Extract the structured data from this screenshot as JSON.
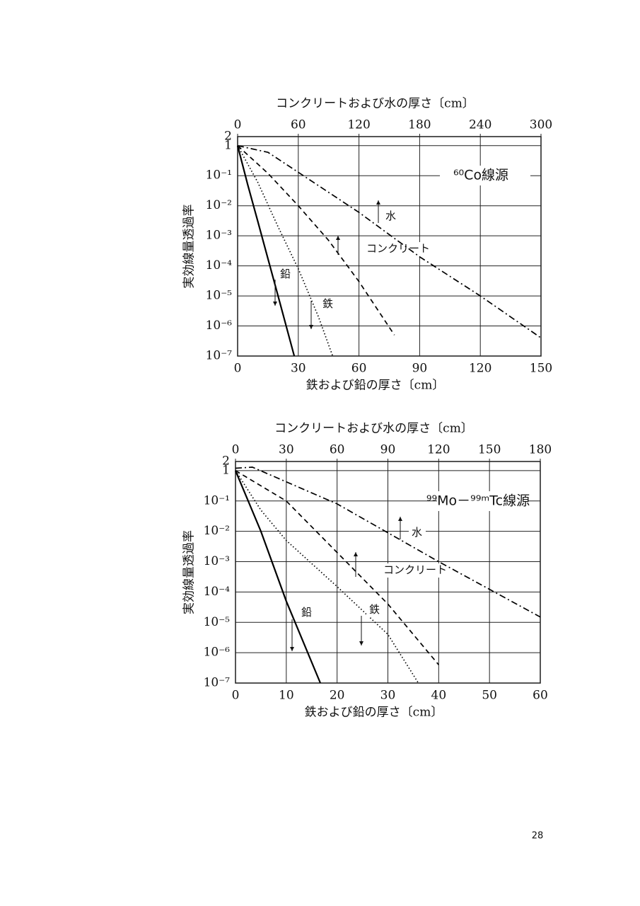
{
  "chart_data": [
    {
      "type": "line",
      "subtitle": "⁶⁰Co線源",
      "x_label": "鉄および鉛の厚さ〔cm〕",
      "x2_label": "コンクリートおよび水の厚さ〔cm〕",
      "y_label": "実効線量透過率",
      "xlim": [
        0,
        150
      ],
      "xticks": [
        0,
        30,
        60,
        90,
        120,
        150
      ],
      "x2lim": [
        0,
        300
      ],
      "x2ticks": [
        0,
        60,
        120,
        180,
        240,
        300
      ],
      "ylim": [
        1e-07,
        2
      ],
      "log_y": true,
      "grid": true,
      "yticks": [
        2,
        1,
        {
          "value": 0.1,
          "label": "10⁻¹"
        },
        {
          "value": 0.01,
          "label": "10⁻²"
        },
        {
          "value": 0.001,
          "label": "10⁻³"
        },
        {
          "value": 0.0001,
          "label": "10⁻⁴"
        },
        {
          "value": 1e-05,
          "label": "10⁻⁵"
        },
        {
          "value": 1e-06,
          "label": "10⁻⁶"
        },
        {
          "value": 1e-07,
          "label": "10⁻⁷"
        }
      ],
      "series": [
        {
          "name": "鉛",
          "style": "solid",
          "color": "#000000",
          "x": [
            0,
            5,
            10,
            20,
            28
          ],
          "values": [
            1,
            0.05,
            0.003,
            1e-05,
            1e-07
          ]
        },
        {
          "name": "鉄",
          "style": "dotted",
          "color": "#000000",
          "x": [
            0,
            10,
            20,
            30,
            40,
            47
          ],
          "values": [
            1,
            0.06,
            0.002,
            8e-05,
            2e-06,
            1e-07
          ]
        },
        {
          "name": "コンクリート",
          "style": "dashed",
          "color": "#000000",
          "axis": "x2",
          "x": [
            0,
            30,
            60,
            90,
            120,
            155
          ],
          "values": [
            1,
            0.12,
            0.01,
            0.0007,
            3e-05,
            5e-07
          ]
        },
        {
          "name": "水",
          "style": "dashdot",
          "color": "#000000",
          "axis": "x2",
          "x": [
            0,
            30,
            60,
            120,
            180,
            240,
            300
          ],
          "values": [
            1,
            0.6,
            0.13,
            0.006,
            0.0002,
            1e-05,
            4e-07
          ]
        }
      ]
    },
    {
      "type": "line",
      "subtitle": "⁹⁹Mo－⁹⁹ᵐTc線源",
      "x_label": "鉄および鉛の厚さ〔cm〕",
      "x2_label": "コンクリートおよび水の厚さ〔cm〕",
      "y_label": "実効線量透過率",
      "xlim": [
        0,
        60
      ],
      "xticks": [
        0,
        10,
        20,
        30,
        40,
        50,
        60
      ],
      "x2lim": [
        0,
        180
      ],
      "x2ticks": [
        0,
        30,
        60,
        90,
        120,
        150,
        180
      ],
      "ylim": [
        1e-07,
        2
      ],
      "log_y": true,
      "grid": true,
      "yticks": [
        2,
        1,
        {
          "value": 0.1,
          "label": "10⁻¹"
        },
        {
          "value": 0.01,
          "label": "10⁻²"
        },
        {
          "value": 0.001,
          "label": "10⁻³"
        },
        {
          "value": 0.0001,
          "label": "10⁻⁴"
        },
        {
          "value": 1e-05,
          "label": "10⁻⁵"
        },
        {
          "value": 1e-06,
          "label": "10⁻⁶"
        },
        {
          "value": 1e-07,
          "label": "10⁻⁷"
        }
      ],
      "series": [
        {
          "name": "鉛",
          "style": "solid",
          "color": "#000000",
          "x": [
            0,
            5,
            10,
            16.7
          ],
          "values": [
            1,
            0.01,
            5e-05,
            1e-07
          ]
        },
        {
          "name": "鉄",
          "style": "dotted",
          "color": "#000000",
          "x": [
            0,
            5,
            10,
            20,
            30,
            36
          ],
          "values": [
            1,
            0.05,
            0.005,
            0.00015,
            4e-06,
            1e-07
          ]
        },
        {
          "name": "コンクリート",
          "style": "dashed",
          "color": "#000000",
          "axis": "x2",
          "x": [
            0,
            30,
            60,
            90,
            120
          ],
          "values": [
            1,
            0.1,
            0.002,
            4e-05,
            4e-07
          ]
        },
        {
          "name": "水",
          "style": "dashdot",
          "color": "#000000",
          "axis": "x2",
          "x": [
            0,
            10,
            60,
            120,
            180
          ],
          "values": [
            1.2,
            1.3,
            0.08,
            0.001,
            1.5e-05
          ]
        }
      ]
    }
  ],
  "page_number": "28"
}
